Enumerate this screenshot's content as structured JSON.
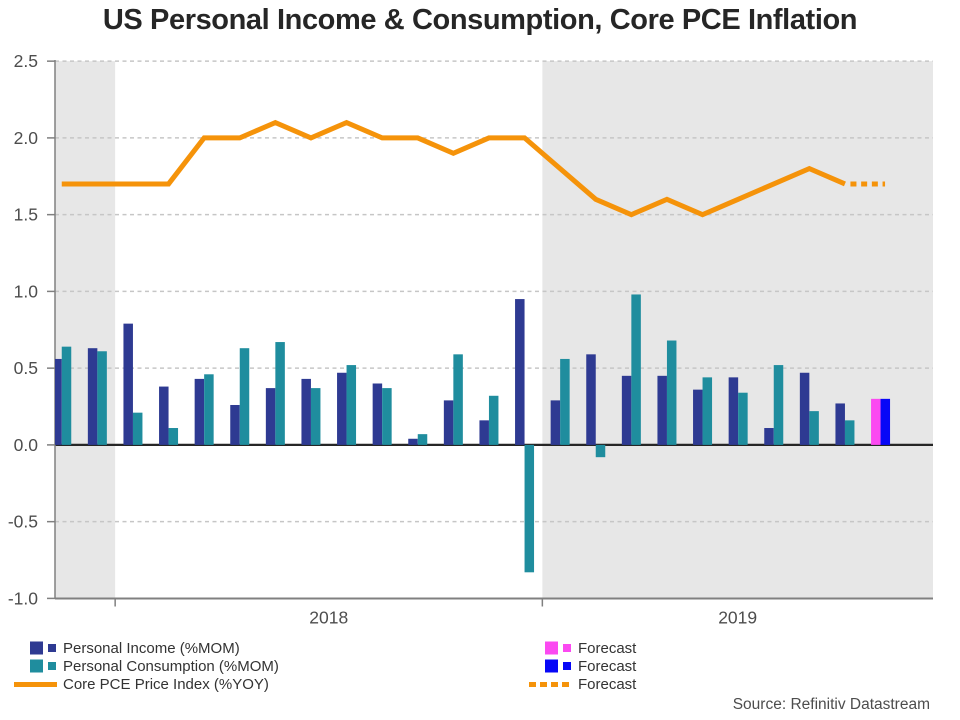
{
  "title": "US Personal Income & Consumption, Core PCE Inflation",
  "source_note": "Source: Refinitiv Datastream",
  "colors": {
    "income": "#2E3A92",
    "consumption": "#1F8D9E",
    "core_pce_line": "#F5930A",
    "forecast_income": "#FB49F1",
    "forecast_consumption": "#0707F7",
    "shaded_band": "#E7E7E7",
    "gridline": "#C6C6C6",
    "zero_line": "#262626",
    "axis": "#808080",
    "tick_text": "#4d4d4d"
  },
  "legend": {
    "items_left": [
      {
        "label": "Personal Income (%MOM)",
        "color": "#2E3A92",
        "marker": "squares"
      },
      {
        "label": "Personal Consumption (%MOM)",
        "color": "#1F8D9E",
        "marker": "squares"
      },
      {
        "label": "Core PCE Price Index (%YOY)",
        "color": "#F5930A",
        "marker": "line"
      }
    ],
    "items_right": [
      {
        "label": "Forecast",
        "color": "#FB49F1",
        "marker": "squares"
      },
      {
        "label": "Forecast",
        "color": "#0707F7",
        "marker": "squares"
      },
      {
        "label": "Forecast",
        "color": "#F5930A",
        "marker": "dotted-line"
      }
    ]
  },
  "chart_data": {
    "type": "bar",
    "group_count": 24,
    "ylim": [
      -1.0,
      2.5
    ],
    "y_ticks": [
      "2.5",
      "2.0",
      "1.5",
      "1.0",
      "0.5",
      "0.0",
      "-0.5",
      "-1.0"
    ],
    "grid": "horizontal-dashed",
    "legend_position": "bottom",
    "x_year_labels": [
      {
        "label": "2018",
        "groups": [
          3,
          14
        ]
      },
      {
        "label": "2019",
        "groups": [
          15,
          24
        ]
      }
    ],
    "shaded_group_ranges": [
      [
        1,
        2
      ],
      [
        15,
        24
      ]
    ],
    "series": [
      {
        "name": "Personal Income (%MOM)",
        "color": "#2E3A92",
        "last_group_is_forecast": true,
        "forecast_color": "#FB49F1",
        "values": [
          0.56,
          0.63,
          0.79,
          0.38,
          0.43,
          0.26,
          0.37,
          0.43,
          0.47,
          0.4,
          0.04,
          0.29,
          0.16,
          0.95,
          0.29,
          0.59,
          0.45,
          0.45,
          0.36,
          0.44,
          0.11,
          0.47,
          0.27,
          0.3
        ]
      },
      {
        "name": "Personal Consumption (%MOM)",
        "color": "#1F8D9E",
        "last_group_is_forecast": true,
        "forecast_color": "#0707F7",
        "values": [
          0.64,
          0.61,
          0.21,
          0.11,
          0.46,
          0.63,
          0.67,
          0.37,
          0.52,
          0.37,
          0.07,
          0.59,
          0.32,
          -0.83,
          0.56,
          -0.08,
          0.98,
          0.68,
          0.44,
          0.34,
          0.52,
          0.22,
          0.16,
          0.3
        ]
      }
    ],
    "line_series": {
      "name": "Core PCE Price Index (%YOY)",
      "color": "#F5930A",
      "forecast_last_segment_dotted": true,
      "values": [
        1.7,
        1.7,
        1.7,
        1.7,
        2.0,
        2.0,
        2.1,
        2.0,
        2.1,
        2.0,
        2.0,
        1.9,
        2.0,
        2.0,
        1.8,
        1.6,
        1.5,
        1.6,
        1.5,
        1.6,
        1.7,
        1.8,
        1.7,
        1.7
      ]
    }
  }
}
